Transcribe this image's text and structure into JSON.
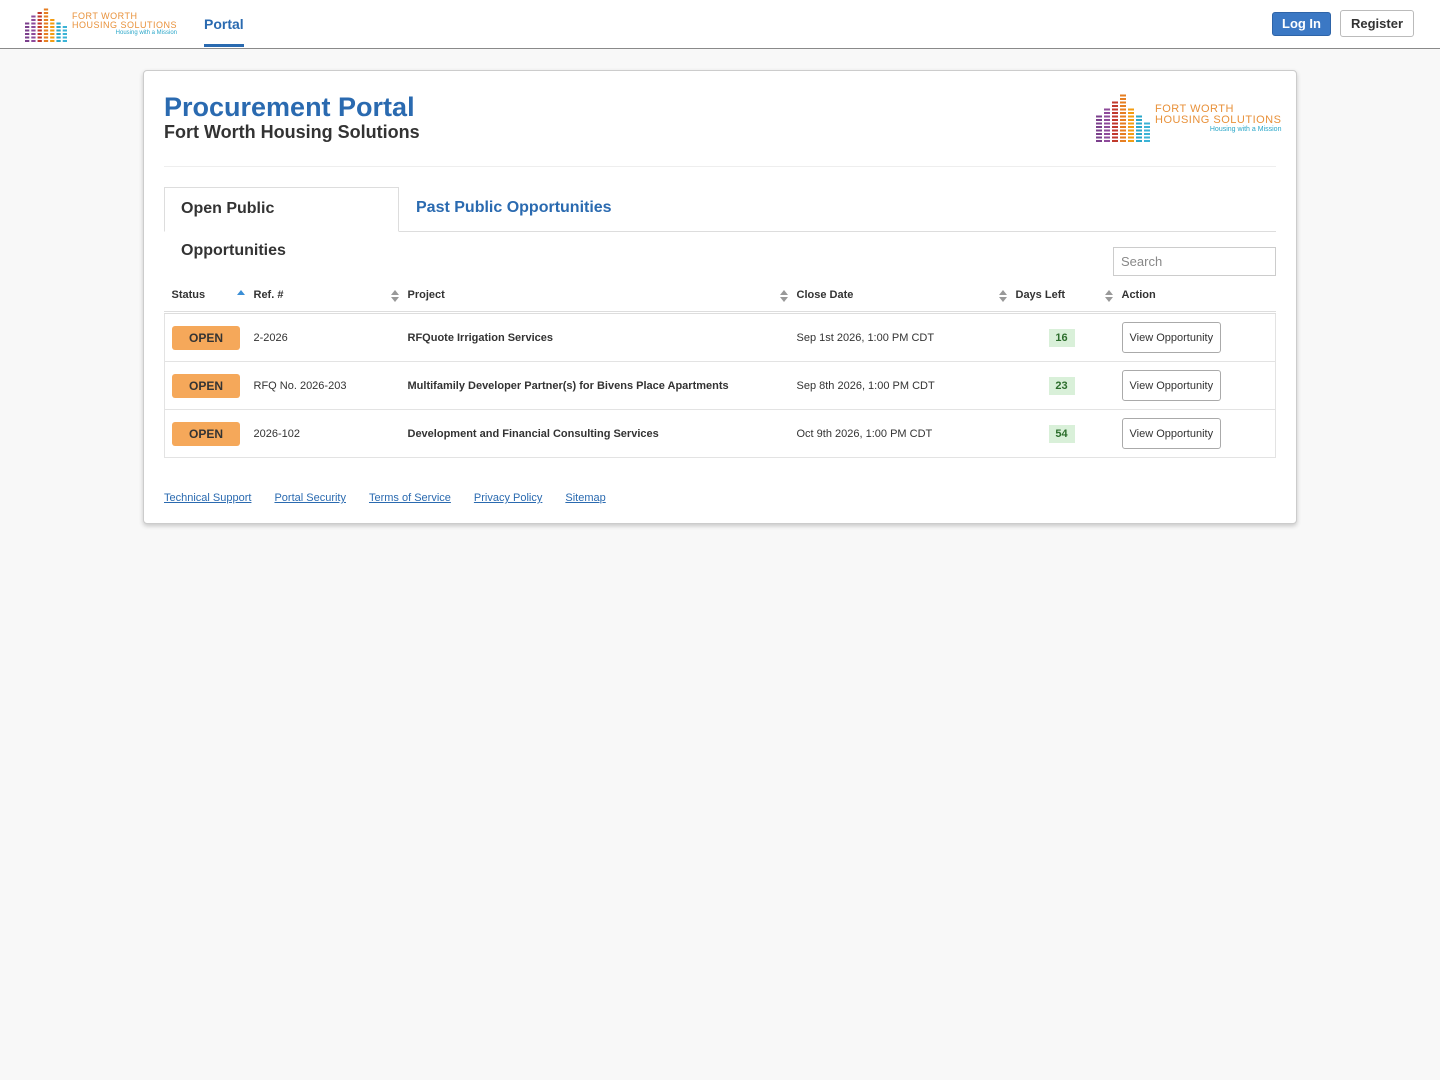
{
  "logo": {
    "line1": "FORT WORTH",
    "line2": "HOUSING SOLUTIONS",
    "tagline": "Housing with a Mission"
  },
  "nav": {
    "portal": "Portal",
    "login": "Log In",
    "register": "Register"
  },
  "header": {
    "title": "Procurement Portal",
    "subtitle": "Fort Worth Housing Solutions"
  },
  "tabs": [
    "Open Public Opportunities",
    "Past Public Opportunities"
  ],
  "search": {
    "placeholder": "Search"
  },
  "table": {
    "columns": [
      "Status",
      "Ref. #",
      "Project",
      "Close Date",
      "Days Left",
      "Action"
    ],
    "rows": [
      [
        "OPEN",
        "2-2026",
        "RFQuote Irrigation Services",
        "Sep 1st 2026, 1:00 PM CDT",
        16,
        "View Opportunity"
      ],
      [
        "OPEN",
        "RFQ No. 2026-203",
        "Multifamily Developer Partner(s) for Bivens Place Apartments",
        "Sep 8th 2026, 1:00 PM CDT",
        23,
        "View Opportunity"
      ],
      [
        "OPEN",
        "2026-102",
        "Development and Financial Consulting Services",
        "Oct 9th 2026, 1:00 PM CDT",
        54,
        "View Opportunity"
      ]
    ]
  },
  "footer": {
    "links": [
      "Technical Support",
      "Portal Security",
      "Terms of Service",
      "Privacy Policy",
      "Sitemap"
    ]
  }
}
